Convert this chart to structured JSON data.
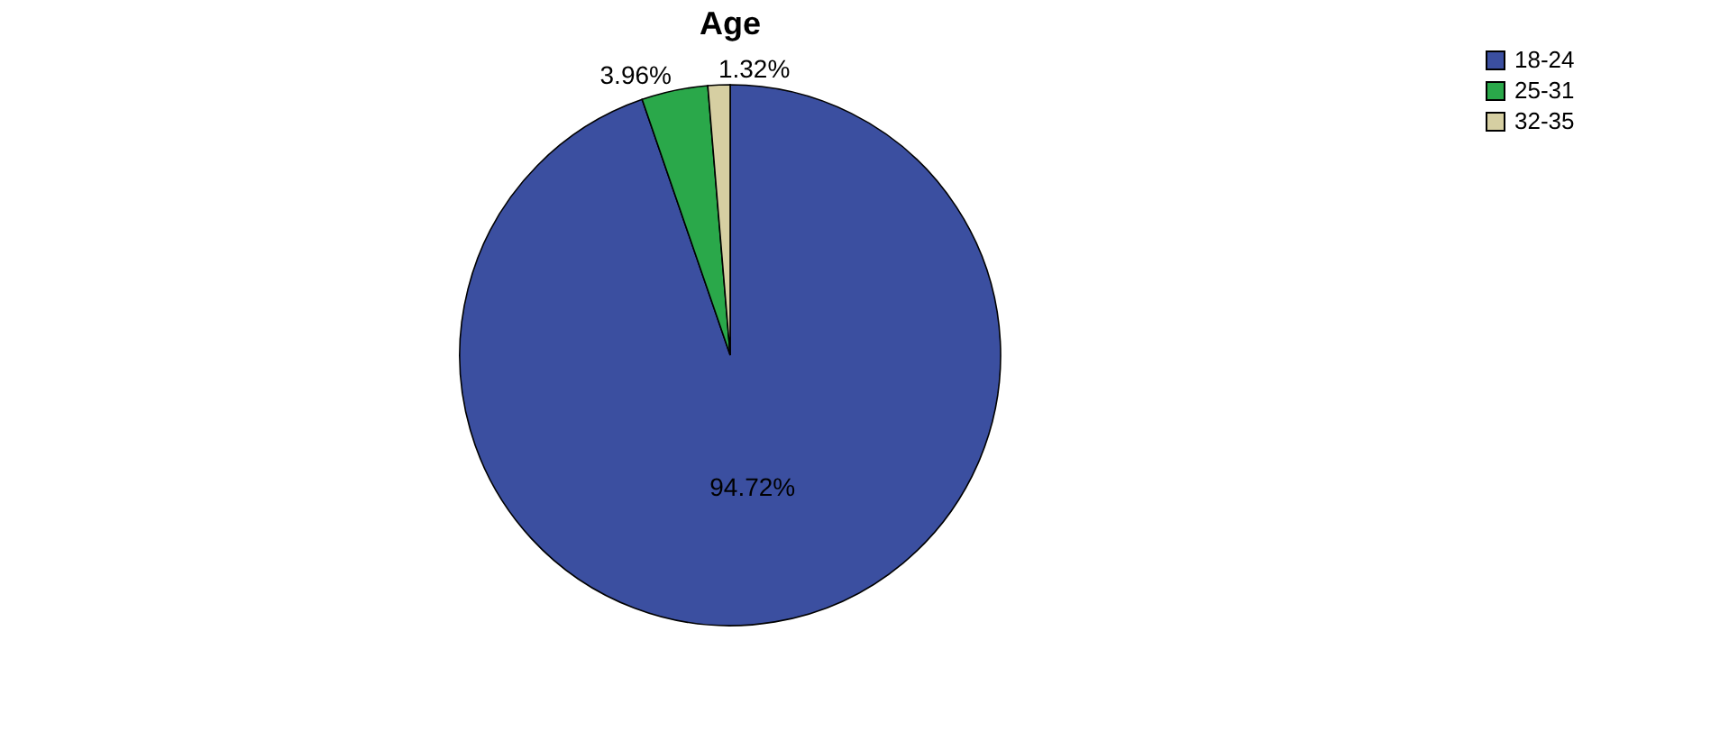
{
  "chart_data": {
    "type": "pie",
    "title": "Age",
    "categories": [
      "18-24",
      "25-31",
      "32-35"
    ],
    "values": [
      94.72,
      3.96,
      1.32
    ],
    "colors": [
      "#3b4fa0",
      "#2aa84a",
      "#d6cfa2"
    ],
    "value_labels": [
      "94.72%",
      "3.96%",
      "1.32%"
    ],
    "legend": "top right"
  }
}
